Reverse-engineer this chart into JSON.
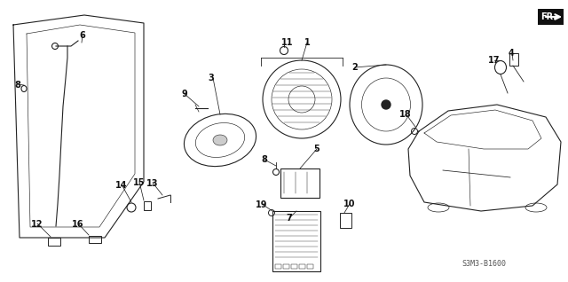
{
  "bg_color": "#ffffff",
  "line_color": "#222222",
  "label_fontsize": 7.0,
  "reference_code": "S3M3-B1600"
}
